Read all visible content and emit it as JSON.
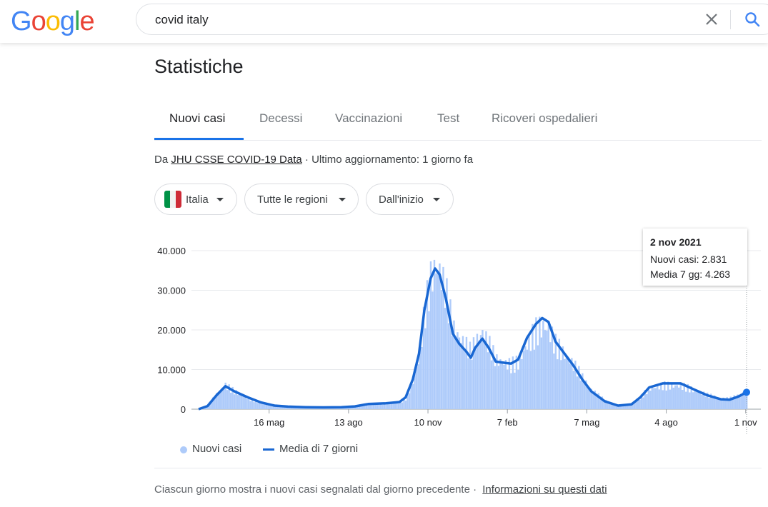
{
  "header": {
    "logo": "Google",
    "query": "covid italy"
  },
  "title": "Statistiche",
  "tabs": [
    {
      "label": "Nuovi casi",
      "active": true
    },
    {
      "label": "Decessi",
      "active": false
    },
    {
      "label": "Vaccinazioni",
      "active": false
    },
    {
      "label": "Test",
      "active": false
    },
    {
      "label": "Ricoveri ospedalieri",
      "active": false
    }
  ],
  "source": {
    "prefix": "Da",
    "link": "JHU CSSE COVID-19 Data",
    "updated": "· Ultimo aggiornamento: 1 giorno fa"
  },
  "filters": {
    "country": "Italia",
    "region": "Tutte le regioni",
    "range": "Dall'inizio"
  },
  "tooltip": {
    "date": "2 nov 2021",
    "cases": "Nuovi casi: 2.831",
    "avg": "Media 7 gg: 4.263"
  },
  "legend": {
    "bars": "Nuovi casi",
    "line": "Media di 7 giorni"
  },
  "footer": {
    "note": "Ciascun giorno mostra i nuovi casi segnalati dal giorno precedente",
    "link": "Informazioni su questi dati"
  },
  "colors": {
    "bars": "#aecbfa",
    "line": "#1967d2",
    "accent": "#1a73e8"
  },
  "chart_data": {
    "type": "bar",
    "y_ticks": [
      "0",
      "10.000",
      "20.000",
      "30.000",
      "40.000"
    ],
    "ylim": [
      0,
      40000
    ],
    "x_ticks": [
      {
        "label": "16 mag",
        "day": 79
      },
      {
        "label": "13 ago",
        "day": 168
      },
      {
        "label": "10 nov",
        "day": 257
      },
      {
        "label": "7 feb",
        "day": 346
      },
      {
        "label": "7 mag",
        "day": 435
      },
      {
        "label": "4 ago",
        "day": 524
      },
      {
        "label": "1 nov",
        "day": 613
      }
    ],
    "day_range": [
      0,
      614
    ],
    "series": [
      {
        "name": "Media di 7 giorni",
        "points": [
          [
            0,
            0
          ],
          [
            10,
            800
          ],
          [
            20,
            3500
          ],
          [
            30,
            5800
          ],
          [
            40,
            4500
          ],
          [
            55,
            3000
          ],
          [
            70,
            1700
          ],
          [
            85,
            900
          ],
          [
            100,
            650
          ],
          [
            120,
            500
          ],
          [
            140,
            450
          ],
          [
            160,
            500
          ],
          [
            175,
            700
          ],
          [
            190,
            1300
          ],
          [
            210,
            1500
          ],
          [
            225,
            1800
          ],
          [
            232,
            3000
          ],
          [
            240,
            7500
          ],
          [
            247,
            14000
          ],
          [
            253,
            25000
          ],
          [
            260,
            33000
          ],
          [
            265,
            35500
          ],
          [
            270,
            34000
          ],
          [
            277,
            28000
          ],
          [
            285,
            19000
          ],
          [
            292,
            16500
          ],
          [
            300,
            14500
          ],
          [
            305,
            13000
          ],
          [
            310,
            15500
          ],
          [
            318,
            17800
          ],
          [
            325,
            15500
          ],
          [
            333,
            12000
          ],
          [
            343,
            11700
          ],
          [
            350,
            11500
          ],
          [
            358,
            12500
          ],
          [
            368,
            18000
          ],
          [
            378,
            21500
          ],
          [
            385,
            23000
          ],
          [
            392,
            22000
          ],
          [
            400,
            17000
          ],
          [
            410,
            14000
          ],
          [
            420,
            11000
          ],
          [
            430,
            7500
          ],
          [
            440,
            4500
          ],
          [
            455,
            2000
          ],
          [
            470,
            900
          ],
          [
            485,
            1200
          ],
          [
            495,
            3000
          ],
          [
            505,
            5500
          ],
          [
            520,
            6500
          ],
          [
            540,
            6500
          ],
          [
            555,
            5000
          ],
          [
            570,
            3500
          ],
          [
            585,
            2500
          ],
          [
            595,
            2400
          ],
          [
            605,
            3200
          ],
          [
            614,
            4263
          ]
        ]
      }
    ],
    "highlight": {
      "date": "2 nov 2021",
      "cases": 2831,
      "avg": 4263
    }
  }
}
